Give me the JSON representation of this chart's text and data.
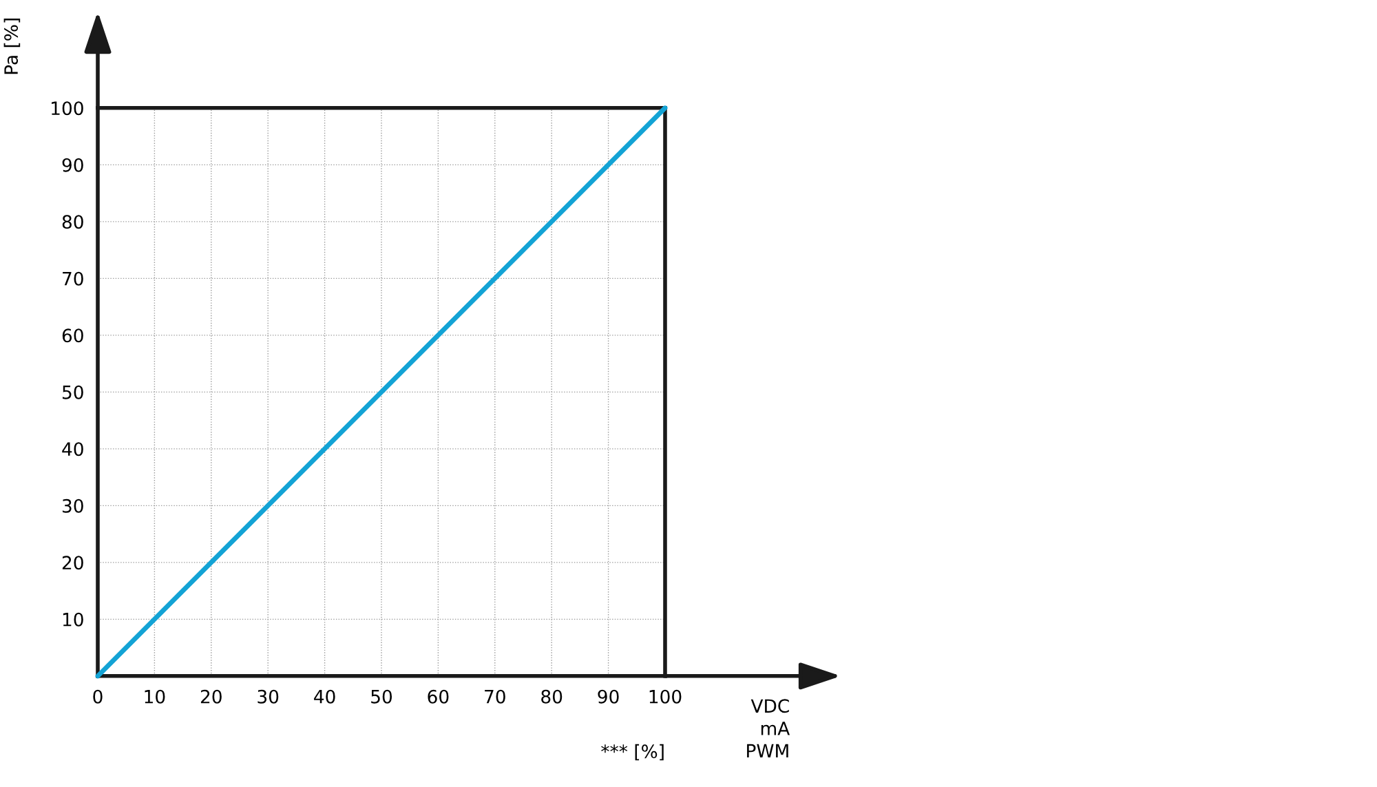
{
  "chart_data": {
    "type": "line",
    "x": [
      0,
      100
    ],
    "series": [
      {
        "color": "#13a3d5",
        "values": [
          0,
          100
        ]
      }
    ],
    "xlim": [
      0,
      100
    ],
    "ylim": [
      0,
      100
    ],
    "xticks": [
      0,
      10,
      20,
      30,
      40,
      50,
      60,
      70,
      80,
      90,
      100
    ],
    "yticks": [
      10,
      20,
      30,
      40,
      50,
      60,
      70,
      80,
      90,
      100
    ],
    "ylabel": "Pa [%]",
    "xlabel": "VDC\nmA\nPWM",
    "annotations": [
      "*** [%]"
    ],
    "grid": true
  }
}
